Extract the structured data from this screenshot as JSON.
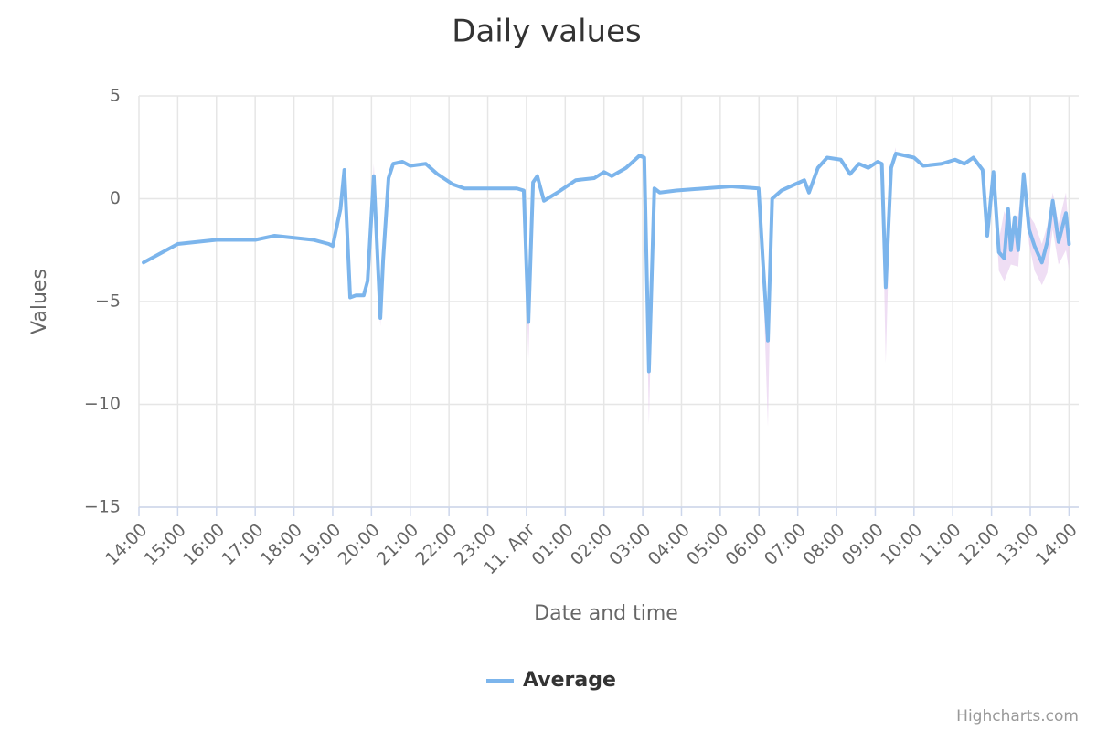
{
  "chart_data": {
    "type": "line",
    "title": "Daily values",
    "x_label": "Date and time",
    "y_label": "Values",
    "credits": "Highcharts.com",
    "grid": true,
    "legend": "bottom",
    "xlim": [
      0,
      24.25
    ],
    "ylim": [
      -15,
      5
    ],
    "yticks": [
      {
        "value": -15,
        "label": "−15"
      },
      {
        "value": -10,
        "label": "−10"
      },
      {
        "value": -5,
        "label": "−5"
      },
      0,
      5
    ],
    "xticks": [
      {
        "value": 0,
        "label": "14:00"
      },
      {
        "value": 1,
        "label": "15:00"
      },
      {
        "value": 2,
        "label": "16:00"
      },
      {
        "value": 3,
        "label": "17:00"
      },
      {
        "value": 4,
        "label": "18:00"
      },
      {
        "value": 5,
        "label": "19:00"
      },
      {
        "value": 6,
        "label": "20:00"
      },
      {
        "value": 7,
        "label": "21:00"
      },
      {
        "value": 8,
        "label": "22:00"
      },
      {
        "value": 9,
        "label": "23:00"
      },
      {
        "value": 10,
        "label": "11. Apr"
      },
      {
        "value": 11,
        "label": "01:00"
      },
      {
        "value": 12,
        "label": "02:00"
      },
      {
        "value": 13,
        "label": "03:00"
      },
      {
        "value": 14,
        "label": "04:00"
      },
      {
        "value": 15,
        "label": "05:00"
      },
      {
        "value": 16,
        "label": "06:00"
      },
      {
        "value": 17,
        "label": "07:00"
      },
      {
        "value": 18,
        "label": "08:00"
      },
      {
        "value": 19,
        "label": "09:00"
      },
      {
        "value": 20,
        "label": "10:00"
      },
      {
        "value": 21,
        "label": "11:00"
      },
      {
        "value": 22,
        "label": "12:00"
      },
      {
        "value": 23,
        "label": "13:00"
      },
      {
        "value": 24,
        "label": "14:00"
      }
    ],
    "series": [
      {
        "name": "Average",
        "color": "#7cb5ec",
        "x": [
          0.12,
          1.0,
          2.0,
          3.0,
          3.5,
          4.0,
          4.5,
          4.9,
          5.0,
          5.2,
          5.3,
          5.45,
          5.6,
          5.8,
          5.9,
          6.06,
          6.23,
          6.3,
          6.44,
          6.56,
          6.8,
          7.0,
          7.4,
          7.7,
          8.1,
          8.4,
          9.15,
          9.75,
          9.93,
          10.05,
          10.17,
          10.28,
          10.45,
          10.8,
          11.27,
          11.75,
          12.0,
          12.2,
          12.57,
          12.92,
          13.04,
          13.16,
          13.3,
          13.44,
          13.87,
          14.58,
          15.28,
          15.99,
          16.1,
          16.23,
          16.34,
          16.58,
          16.93,
          17.17,
          17.29,
          17.52,
          17.76,
          18.11,
          18.35,
          18.58,
          18.82,
          19.06,
          19.17,
          19.27,
          19.41,
          19.53,
          20.0,
          20.24,
          20.71,
          21.06,
          21.3,
          21.53,
          21.77,
          21.89,
          22.05,
          22.19,
          22.33,
          22.43,
          22.5,
          22.6,
          22.69,
          22.83,
          22.97,
          23.11,
          23.3,
          23.44,
          23.58,
          23.73,
          23.92,
          24.0
        ],
        "values": [
          -3.1,
          -2.2,
          -2.0,
          -2.0,
          -1.8,
          -1.9,
          -2.0,
          -2.2,
          -2.3,
          -0.5,
          1.4,
          -4.8,
          -4.7,
          -4.7,
          -4.0,
          1.1,
          -5.8,
          -3.0,
          1.0,
          1.7,
          1.8,
          1.6,
          1.7,
          1.2,
          0.7,
          0.5,
          0.5,
          0.5,
          0.4,
          -6.0,
          0.8,
          1.1,
          -0.1,
          0.3,
          0.9,
          1.0,
          1.3,
          1.1,
          1.5,
          2.1,
          2.0,
          -8.4,
          0.5,
          0.3,
          0.4,
          0.5,
          0.6,
          0.5,
          -3.0,
          -6.9,
          0.0,
          0.4,
          0.7,
          0.9,
          0.3,
          1.5,
          2.0,
          1.9,
          1.2,
          1.7,
          1.5,
          1.8,
          1.7,
          -4.3,
          1.5,
          2.2,
          2.0,
          1.6,
          1.7,
          1.9,
          1.7,
          2.0,
          1.4,
          -1.8,
          1.3,
          -2.6,
          -2.9,
          -0.5,
          -2.5,
          -0.9,
          -2.5,
          1.2,
          -1.5,
          -2.3,
          -3.1,
          -2.1,
          -0.1,
          -2.1,
          -0.7,
          -2.2
        ]
      }
    ],
    "range": {
      "color": "#e4c8ec",
      "x": [
        5.9,
        6.06,
        6.23,
        6.3,
        6.44,
        null,
        9.93,
        10.05,
        10.17,
        null,
        13.04,
        13.16,
        13.3,
        null,
        16.1,
        16.23,
        16.34,
        null,
        19.17,
        19.27,
        19.41,
        19.53,
        null,
        22.05,
        22.19,
        22.33,
        22.5,
        22.69,
        22.83,
        22.97,
        23.11,
        23.3,
        23.44,
        23.58,
        23.73,
        23.92,
        24.0
      ],
      "low": [
        -4.2,
        1.0,
        -6.2,
        -3.2,
        0.9,
        null,
        0.3,
        -7.8,
        0.7,
        null,
        1.9,
        -11.0,
        0.4,
        null,
        -3.5,
        -11.1,
        -0.2,
        null,
        1.6,
        -8.0,
        1.3,
        2.0,
        null,
        1.1,
        -3.5,
        -4.0,
        -3.2,
        -3.3,
        0.8,
        -2.2,
        -3.5,
        -4.2,
        -3.6,
        -1.5,
        -3.2,
        -2.5,
        -3.5
      ],
      "high": [
        -3.8,
        1.7,
        -5.4,
        -2.8,
        1.1,
        null,
        0.5,
        -5.8,
        0.9,
        null,
        2.1,
        -8.0,
        0.6,
        null,
        -2.8,
        -6.5,
        0.1,
        null,
        1.8,
        -4.0,
        1.7,
        2.5,
        null,
        1.4,
        -2.0,
        -0.6,
        -1.5,
        -0.8,
        1.3,
        -0.8,
        -1.2,
        -2.2,
        -1.3,
        0.3,
        -1.2,
        0.3,
        -1.8
      ]
    }
  }
}
